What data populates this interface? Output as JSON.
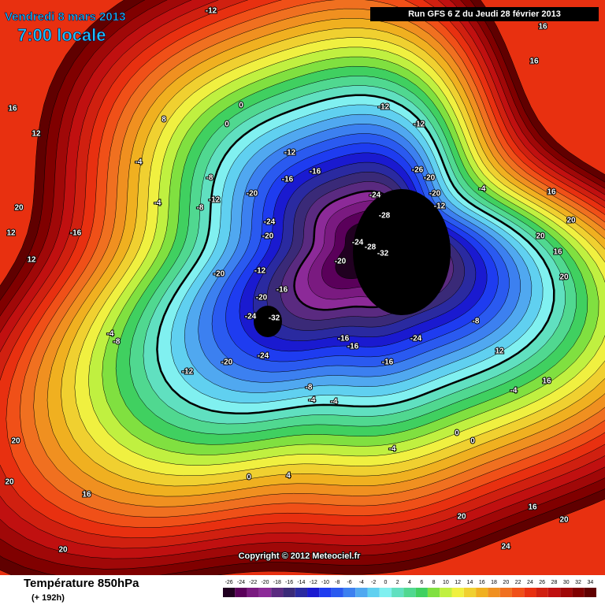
{
  "header": {
    "valid_date": "Vendredi 8 mars 2013",
    "local_time": "7:00 locale",
    "run": "Run GFS 6 Z du Jeudi 28 février 2013"
  },
  "map": {
    "copyright": "Copyright © 2012 Meteociel.fr",
    "contour_labels": [
      "-12",
      "16",
      "16",
      "12",
      "8",
      "0",
      "0",
      "-12",
      "-12",
      "16",
      "-12",
      "-16",
      "-16",
      "-20",
      "-12",
      "-8",
      "-8",
      "-4",
      "-4",
      "-24",
      "-28",
      "-26",
      "-20",
      "-20",
      "-12",
      "-4",
      "16",
      "-24",
      "-20",
      "-24",
      "-28",
      "-32",
      "-20",
      "-20",
      "-12",
      "-16",
      "-20",
      "-24",
      "-32",
      "-16",
      "-16",
      "-24",
      "-16",
      "-8",
      "-24",
      "-20",
      "-12",
      "-8",
      "-4",
      "-4",
      "-8",
      "-4",
      "-4",
      "-4",
      "4",
      "0",
      "16",
      "20",
      "20",
      "20",
      "24",
      "16",
      "20",
      "20",
      "16",
      "20",
      "20",
      "12",
      "-16",
      "12",
      "20",
      "20",
      "16",
      "0",
      "12",
      "0"
    ]
  },
  "footer": {
    "parameter": "Température 850hPa",
    "lead_time": "(+ 192h)"
  },
  "colorbar": {
    "ticks": [
      -26,
      -24,
      -22,
      -20,
      -18,
      -16,
      -14,
      -12,
      -10,
      -8,
      -6,
      -4,
      -2,
      0,
      2,
      4,
      6,
      8,
      10,
      12,
      14,
      16,
      18,
      20,
      22,
      24,
      26,
      28,
      30,
      32,
      34
    ],
    "colors": [
      "#200020",
      "#5a005a",
      "#7a1a80",
      "#8c2a98",
      "#5a2a80",
      "#3a2a78",
      "#2a2aa0",
      "#1a1ad0",
      "#1e3cf0",
      "#2a5af0",
      "#3c80f0",
      "#50a8f0",
      "#60d0f0",
      "#80f0f0",
      "#60e0c0",
      "#50d890",
      "#40d060",
      "#80e040",
      "#c0f040",
      "#f0f040",
      "#f0d030",
      "#f0b020",
      "#f09020",
      "#f07020",
      "#f05018",
      "#e83010",
      "#d02010",
      "#c01010",
      "#a00808",
      "#800000",
      "#600000"
    ]
  }
}
